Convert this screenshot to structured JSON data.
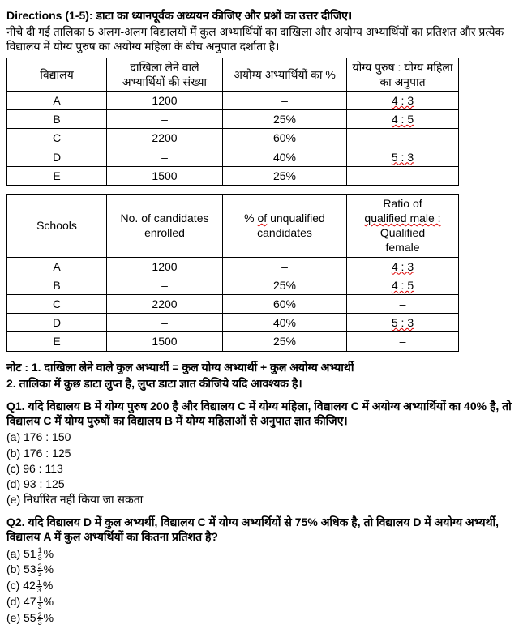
{
  "directions": {
    "label": "Directions (1-5):",
    "text1": "डाटा का ध्यानपूर्वक अध्ययन कीजिए और प्रश्नों का उत्तर दीजिए।",
    "text2": "नीचे दी गई तालिका 5 अलग-अलग विद्यालयों में कुल अभ्यार्थियों का दाखिला और अयोग्य अभ्यार्थियों का प्रतिशत और प्रत्येक विद्यालय में योग्य पुरुष का अयोग्य महिला के बीच अनुपात दर्शाता है।"
  },
  "table1": {
    "headers": [
      "विद्यालय",
      "दाखिला लेने वाले अभ्यार्थियों की संख्या",
      "अयोग्य अभ्यार्थियों का %",
      "योग्य पुरुष : योग्य महिला का अनुपात"
    ],
    "rows": [
      [
        "A",
        "1200",
        "–",
        "4 : 3"
      ],
      [
        "B",
        "–",
        "25%",
        "4 : 5"
      ],
      [
        "C",
        "2200",
        "60%",
        "–"
      ],
      [
        "D",
        "–",
        "40%",
        "5 : 3"
      ],
      [
        "E",
        "1500",
        "25%",
        "–"
      ]
    ]
  },
  "table2": {
    "headers": [
      "Schools",
      "No. of candidates enrolled",
      "% of unqualified candidates",
      "Ratio of qualified male : Qualified female"
    ],
    "header_parts": {
      "ratio_l1": "Ratio of",
      "ratio_l2": "qualified male :",
      "ratio_l3": "Qualified",
      "ratio_l4": "female",
      "pct_l1": "% of unqualified",
      "pct_l2": "candidates"
    },
    "rows": [
      [
        "A",
        "1200",
        "–",
        "4 : 3"
      ],
      [
        "B",
        "–",
        "25%",
        "4 : 5"
      ],
      [
        "C",
        "2200",
        "60%",
        "–"
      ],
      [
        "D",
        "–",
        "40%",
        "5 : 3"
      ],
      [
        "E",
        "1500",
        "25%",
        "–"
      ]
    ]
  },
  "note": {
    "line1": "नोट : 1. दाखिला लेने वाले कुल अभ्यार्थी = कुल योग्य अभ्यार्थी + कुल अयोग्य अभ्यार्थी",
    "line2": "2.  तालिका में कुछ डाटा लुप्त है, लुप्त डाटा ज्ञात कीजिये यदि आवश्यक है।"
  },
  "q1": {
    "text": "Q1. यदि विद्यालय B में योग्य पुरुष 200 है और विद्यालय C में योग्य महिला, विद्यालय C में अयोग्य अभ्यार्थियों का 40% है, तो विद्यालय C में योग्य पुरुषों का विद्यालय B  में योग्य महिलाओं से अनुपात ज्ञात कीजिए।",
    "opts": [
      "(a) 176 : 150",
      "(b) 176 : 125",
      "(c) 96 : 113",
      "(d) 93 : 125",
      "(e) निर्धारित नहीं किया जा सकता"
    ]
  },
  "q2": {
    "text": "Q2. यदि विद्यालय D में कुल अभ्यर्थी, विद्यालय C में योग्य अभ्यर्थियों से 75% अधिक है, तो विद्यालय D में अयोग्य अभ्यर्थी, विद्यालय A में कुल अभ्यर्थियों का कितना प्रतिशत है?",
    "opts": [
      {
        "pre": "(a) 51",
        "n": "1",
        "d": "3",
        "post": "%"
      },
      {
        "pre": "(b) 53",
        "n": "2",
        "d": "3",
        "post": "%"
      },
      {
        "pre": "(c) 42",
        "n": "1",
        "d": "3",
        "post": "%"
      },
      {
        "pre": "(d) 47",
        "n": "1",
        "d": "3",
        "post": "%"
      },
      {
        "pre": "(e) 55",
        "n": "2",
        "d": "3",
        "post": "%"
      }
    ]
  }
}
